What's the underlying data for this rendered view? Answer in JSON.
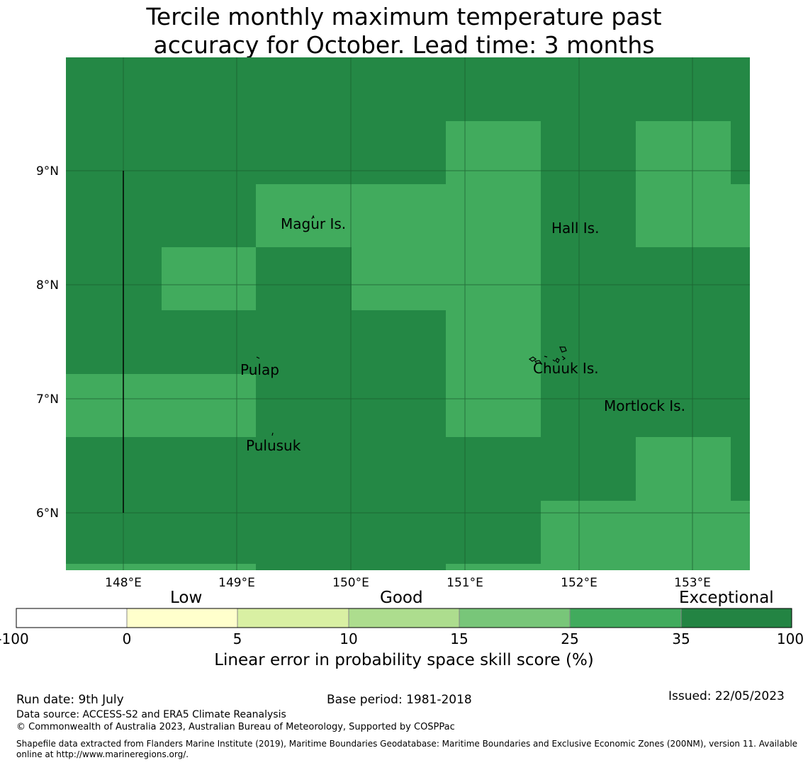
{
  "title": {
    "line1": "Tercile monthly maximum temperature past",
    "line2": "accuracy for October. Lead time: 3 months"
  },
  "map": {
    "lon_labels": [
      "148°E",
      "149°E",
      "150°E",
      "151°E",
      "152°E",
      "153°E"
    ],
    "lat_labels": [
      "9°N",
      "8°N",
      "7°N",
      "6°N"
    ],
    "places": [
      "Magur Is.",
      "Hall Is.",
      "Pulap",
      "Chuuk Is.",
      "Mortlock Is.",
      "Pulusuk"
    ],
    "colors": {
      "exceptional": "#248845",
      "good_high": "#41ab5d"
    }
  },
  "colorbar": {
    "categories": [
      "Low",
      "Good",
      "Exceptional"
    ],
    "ticks": [
      "-100",
      "0",
      "5",
      "10",
      "15",
      "25",
      "35",
      "100"
    ],
    "colors": [
      "#ffffff",
      "#ffffcc",
      "#d9f0a3",
      "#addd8e",
      "#78c679",
      "#41ab5d",
      "#238443"
    ],
    "label": "Linear error in probability space skill score (%)"
  },
  "footer": {
    "run_date": "Run date: 9th July",
    "base_period": "Base period: 1981-2018",
    "issued": "Issued: 22/05/2023",
    "data_source": "Data source: ACCESS-S2 and ERA5 Climate Reanalysis",
    "copyright": "© Commonwealth of Australia 2023, Australian Bureau of Meteorology, Supported by COSPPac",
    "shapefile": "Shapefile data extracted from Flanders Marine Institute (2019), Maritime Boundaries Geodatabase: Maritime Boundaries and Exclusive Economic Zones (200NM), version 11. Available online at http://www.marineregions.org/."
  }
}
